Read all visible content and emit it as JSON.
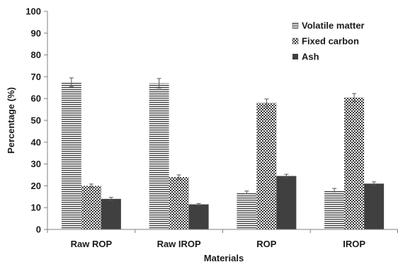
{
  "chart_data": {
    "type": "bar",
    "title": "",
    "xlabel": "Materials",
    "ylabel": "Percentage (%)",
    "ylim": [
      0,
      100
    ],
    "yticks": [
      "0",
      "10",
      "20",
      "30",
      "40",
      "50",
      "60",
      "70",
      "80",
      "90",
      "100"
    ],
    "categories": [
      "Raw ROP",
      "Raw IROP",
      "ROP",
      "IROP"
    ],
    "series": [
      {
        "name": "Volatile matter",
        "values": [
          67.5,
          67.0,
          17.0,
          18.0
        ],
        "errors": [
          2.0,
          2.2,
          0.6,
          0.8
        ],
        "pattern": "horizontal-lines"
      },
      {
        "name": "Fixed carbon",
        "values": [
          20.0,
          24.0,
          58.0,
          60.5
        ],
        "errors": [
          0.8,
          1.0,
          1.8,
          1.8
        ],
        "pattern": "checkerboard"
      },
      {
        "name": "Ash",
        "values": [
          14.0,
          11.5,
          24.5,
          21.0
        ],
        "errors": [
          0.7,
          0.4,
          0.8,
          0.8
        ],
        "pattern": "solid"
      }
    ],
    "legend_position": "top-right",
    "grid": false,
    "error_bars": true,
    "colors": {
      "bar": "#404040",
      "axis": "#808080",
      "text": "#1a1a1a"
    }
  }
}
